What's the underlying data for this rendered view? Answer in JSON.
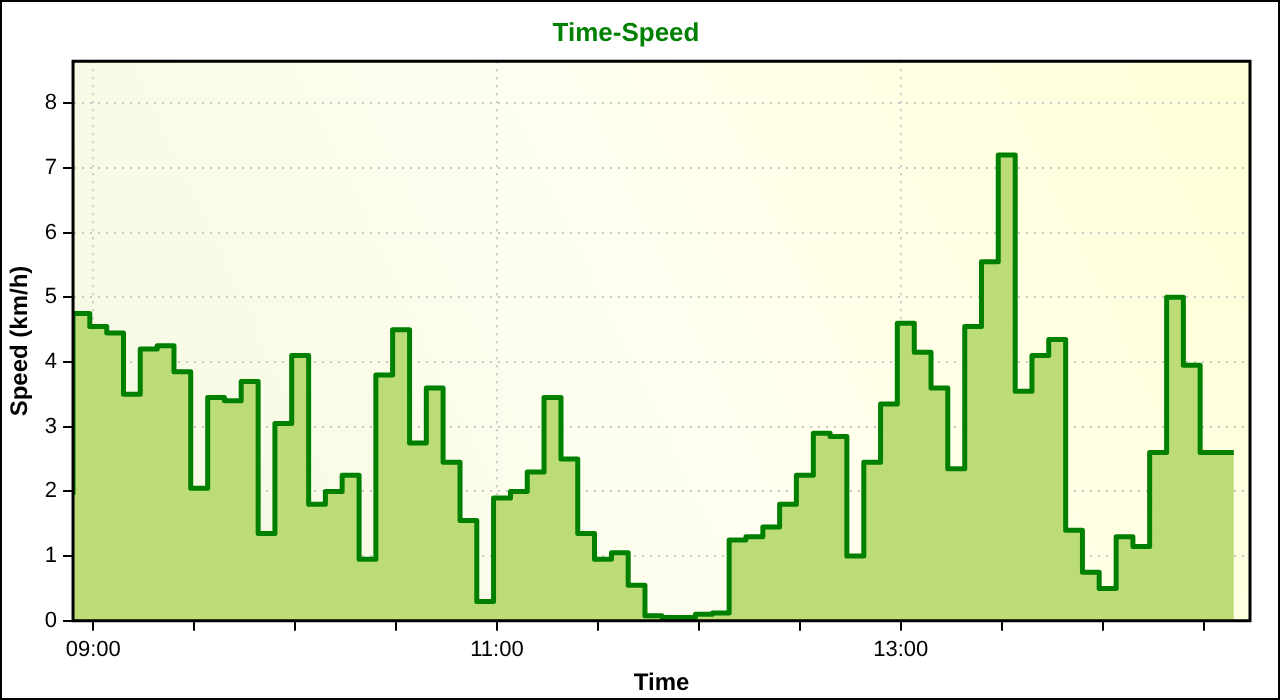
{
  "chart_data": {
    "type": "step",
    "title": "Time-Speed",
    "xlabel": "Time",
    "ylabel": "Speed (km/h)",
    "x": [
      8.9,
      8.983,
      9.067,
      9.15,
      9.233,
      9.317,
      9.4,
      9.483,
      9.567,
      9.65,
      9.733,
      9.817,
      9.9,
      9.983,
      10.067,
      10.15,
      10.233,
      10.317,
      10.4,
      10.483,
      10.567,
      10.65,
      10.733,
      10.817,
      10.9,
      10.983,
      11.067,
      11.15,
      11.233,
      11.317,
      11.4,
      11.483,
      11.567,
      11.65,
      11.733,
      11.817,
      11.9,
      11.983,
      12.067,
      12.15,
      12.233,
      12.317,
      12.4,
      12.483,
      12.567,
      12.65,
      12.733,
      12.817,
      12.9,
      12.983,
      13.067,
      13.15,
      13.233,
      13.317,
      13.4,
      13.483,
      13.567,
      13.65,
      13.733,
      13.817,
      13.9,
      13.983,
      14.067,
      14.15,
      14.233,
      14.317,
      14.4,
      14.483,
      14.567,
      14.65
    ],
    "series": [
      {
        "type": "area",
        "color": "#bcdc78",
        "values": [
          1.95,
          4.75,
          4.55,
          4.45,
          3.5,
          4.2,
          4.25,
          3.85,
          2.05,
          3.45,
          3.4,
          3.7,
          1.35,
          3.05,
          4.1,
          1.8,
          2.0,
          2.25,
          0.95,
          3.8,
          4.5,
          2.75,
          3.6,
          2.45,
          1.55,
          0.3,
          1.9,
          2.0,
          2.3,
          3.45,
          2.5,
          1.35,
          0.95,
          1.05,
          0.55,
          0.08,
          0.05,
          0.05,
          0.1,
          0.12,
          1.25,
          1.3,
          1.45,
          1.8,
          2.25,
          2.9,
          2.85,
          1.0,
          2.45,
          3.35,
          4.6,
          4.15,
          3.6,
          2.35,
          4.55,
          5.55,
          7.2,
          3.55,
          4.1,
          4.35,
          1.4,
          0.75,
          0.5,
          1.3,
          1.15,
          2.6,
          5.0,
          3.95,
          2.6,
          2.6
        ]
      },
      {
        "color": "#008000",
        "values": [
          1.95,
          4.75,
          4.55,
          4.45,
          3.5,
          4.2,
          4.25,
          3.85,
          2.05,
          3.45,
          3.4,
          3.7,
          1.35,
          3.05,
          4.1,
          1.8,
          2.0,
          2.25,
          0.95,
          3.8,
          4.5,
          2.75,
          3.6,
          2.45,
          1.55,
          0.3,
          1.9,
          2.0,
          2.3,
          3.45,
          2.5,
          1.35,
          0.95,
          1.05,
          0.55,
          0.08,
          0.05,
          0.05,
          0.1,
          0.12,
          1.25,
          1.3,
          1.45,
          1.8,
          2.25,
          2.9,
          2.85,
          1.0,
          2.45,
          3.35,
          4.6,
          4.15,
          3.6,
          2.35,
          4.55,
          5.55,
          7.2,
          3.55,
          4.1,
          4.35,
          1.4,
          0.75,
          0.5,
          1.3,
          1.15,
          2.6,
          5.0,
          3.95,
          2.6,
          2.6
        ]
      }
    ],
    "xlim": [
      8.9,
      14.73
    ],
    "xticks": [
      {
        "value": 9,
        "label": "09:00"
      },
      {
        "value": 9.5,
        "label": null
      },
      {
        "value": 10,
        "label": null
      },
      {
        "value": 10.5,
        "label": null
      },
      {
        "value": 11,
        "label": "11:00"
      },
      {
        "value": 11.5,
        "label": null
      },
      {
        "value": 12,
        "label": null
      },
      {
        "value": 12.5,
        "label": null
      },
      {
        "value": 13,
        "label": "13:00"
      },
      {
        "value": 13.5,
        "label": null
      },
      {
        "value": 14,
        "label": null
      },
      {
        "value": 14.5,
        "label": null
      }
    ],
    "ylim": [
      0,
      8.65
    ],
    "yticks": [
      0,
      1,
      2,
      3,
      4,
      5,
      6,
      7,
      8
    ],
    "grid": true,
    "legend": false,
    "marker": "none",
    "line_style": "solid"
  }
}
